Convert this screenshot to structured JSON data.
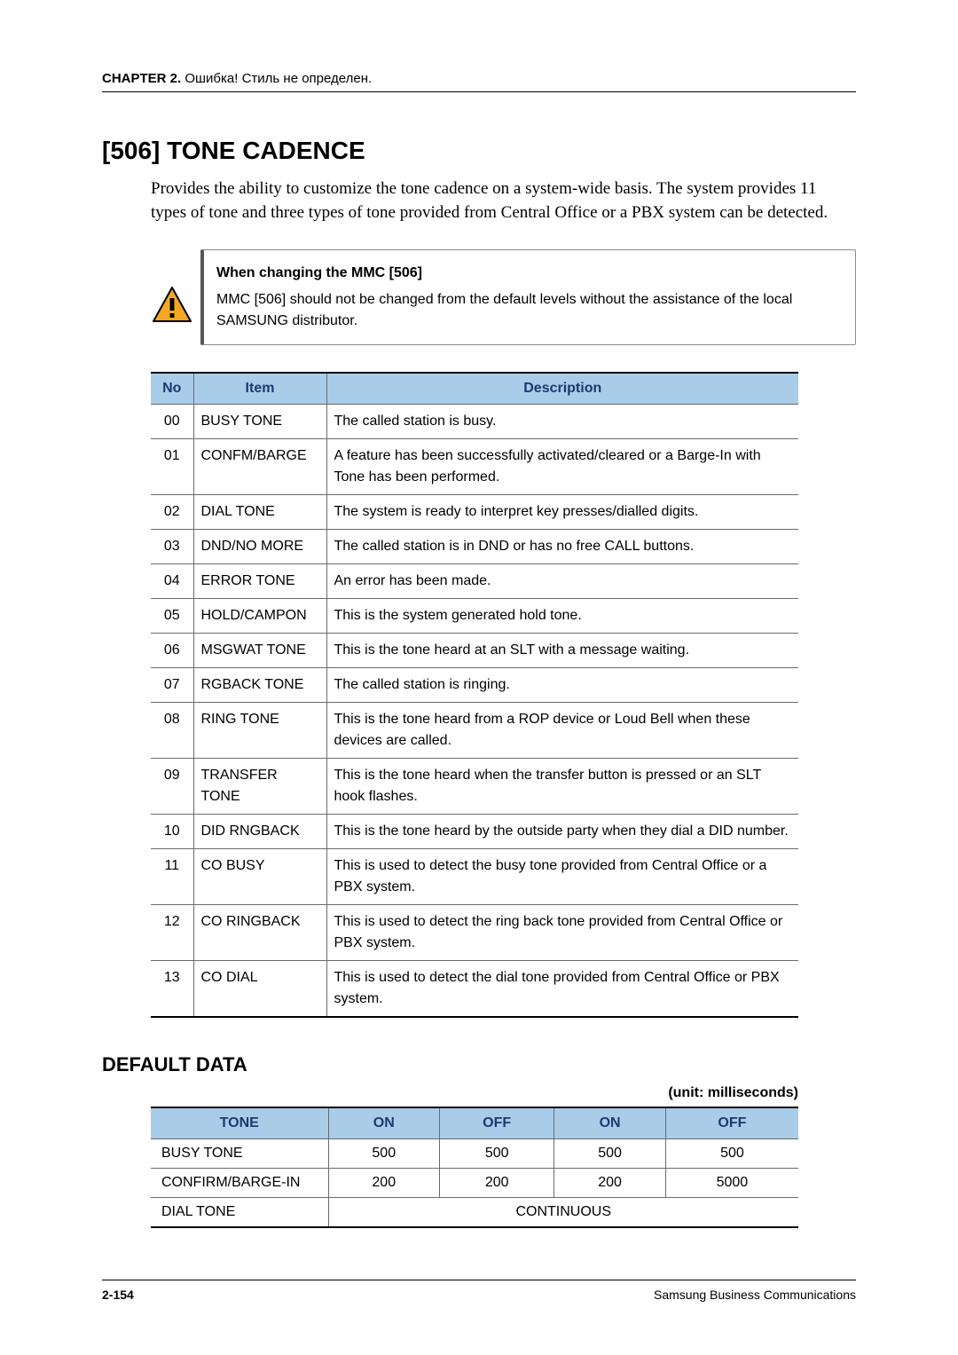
{
  "header": {
    "chapter_label": "CHAPTER 2.",
    "chapter_note": " Ошибка! Стиль не определен."
  },
  "section": {
    "title": "[506] TONE CADENCE",
    "intro": "Provides the ability to customize the tone cadence on a system-wide basis. The system provides 11 types of tone and three types of tone provided from Central Office or a PBX system can be detected."
  },
  "callout": {
    "title": "When changing the MMC [506]",
    "body": "MMC [506] should not be changed from the default levels without the assistance of the local SAMSUNG distributor.",
    "icon_colors": {
      "border": "#000000",
      "fill": "#f7a823",
      "bang": "#000000"
    }
  },
  "table1": {
    "columns": [
      "No",
      "Item",
      "Description"
    ],
    "header_bg": "#a9cce9",
    "header_fg": "#1a3b6e",
    "rows": [
      {
        "no": "00",
        "item": "BUSY TONE",
        "desc": "The called station is busy."
      },
      {
        "no": "01",
        "item": "CONFM/BARGE",
        "desc": "A feature has been successfully activated/cleared or a Barge-In with Tone has been performed."
      },
      {
        "no": "02",
        "item": "DIAL TONE",
        "desc": "The system is ready to interpret key presses/dialled digits."
      },
      {
        "no": "03",
        "item": "DND/NO MORE",
        "desc": "The called station is in DND or has no free CALL buttons."
      },
      {
        "no": "04",
        "item": "ERROR TONE",
        "desc": "An error has been made."
      },
      {
        "no": "05",
        "item": "HOLD/CAMPON",
        "desc": "This is the system generated hold tone."
      },
      {
        "no": "06",
        "item": "MSGWAT TONE",
        "desc": "This is the tone heard at an SLT with a message waiting."
      },
      {
        "no": "07",
        "item": "RGBACK TONE",
        "desc": "The called station is ringing."
      },
      {
        "no": "08",
        "item": "RING TONE",
        "desc": "This is the tone heard from a ROP device or Loud Bell when these devices are called."
      },
      {
        "no": "09",
        "item": "TRANSFER TONE",
        "desc": "This is the tone heard when the transfer button is pressed or an SLT hook flashes."
      },
      {
        "no": "10",
        "item": "DID RNGBACK",
        "desc": "This is the tone heard by the outside party when they dial a DID number."
      },
      {
        "no": "11",
        "item": "CO BUSY",
        "desc": "This is used to detect the busy tone provided from Central Office or a PBX system."
      },
      {
        "no": "12",
        "item": "CO RINGBACK",
        "desc": "This is used to detect the ring back tone provided from Central Office or PBX system."
      },
      {
        "no": "13",
        "item": "CO DIAL",
        "desc": "This is used to detect the dial tone provided from Central Office or PBX system."
      }
    ]
  },
  "default_data": {
    "heading": "DEFAULT DATA",
    "unit": "(unit: milliseconds)",
    "columns": [
      "TONE",
      "ON",
      "OFF",
      "ON",
      "OFF"
    ],
    "rows": [
      {
        "tone": "BUSY TONE",
        "v": [
          "500",
          "500",
          "500",
          "500"
        ]
      },
      {
        "tone": "CONFIRM/BARGE-IN",
        "v": [
          "200",
          "200",
          "200",
          "5000"
        ]
      },
      {
        "tone": "DIAL TONE",
        "continuous": "CONTINUOUS"
      }
    ]
  },
  "footer": {
    "page": "2-154",
    "right": "Samsung Business Communications"
  }
}
